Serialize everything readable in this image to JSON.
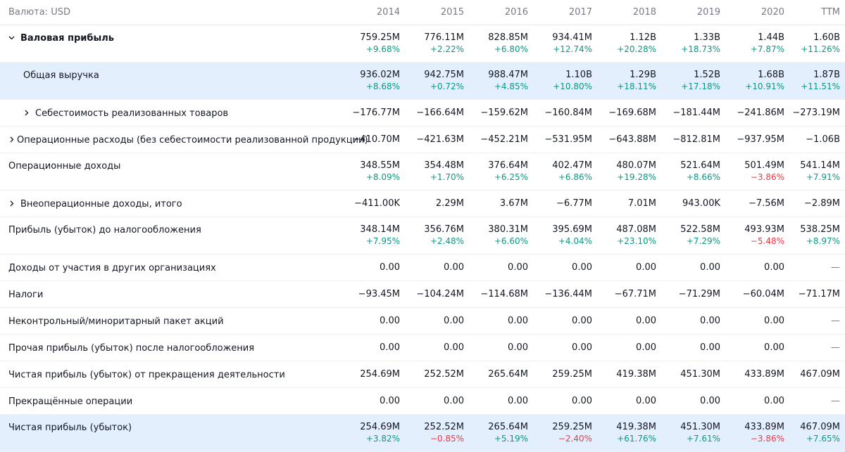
{
  "header": {
    "currency_label": "Валюта: USD",
    "years": [
      "2014",
      "2015",
      "2016",
      "2017",
      "2018",
      "2019",
      "2020",
      "TTM"
    ]
  },
  "rows": [
    {
      "label": "Валовая прибыль",
      "chevron": "expanded",
      "bold": true,
      "values": [
        "759.25M",
        "776.11M",
        "828.85M",
        "934.41M",
        "1.12B",
        "1.33B",
        "1.44B",
        "1.60B"
      ],
      "changes": [
        "+9.68%",
        "+2.22%",
        "+6.80%",
        "+12.74%",
        "+20.28%",
        "+18.73%",
        "+7.87%",
        "+11.26%"
      ]
    },
    {
      "label": "Общая выручка",
      "indent": true,
      "highlight": true,
      "values": [
        "936.02M",
        "942.75M",
        "988.47M",
        "1.10B",
        "1.29B",
        "1.52B",
        "1.68B",
        "1.87B"
      ],
      "changes": [
        "+8.68%",
        "+0.72%",
        "+4.85%",
        "+10.80%",
        "+18.11%",
        "+17.18%",
        "+10.91%",
        "+11.51%"
      ]
    },
    {
      "label": "Себестоимость реализованных товаров",
      "chevron": "collapsed",
      "indent": true,
      "values": [
        "−176.77M",
        "−166.64M",
        "−159.62M",
        "−160.84M",
        "−169.68M",
        "−181.44M",
        "−241.86M",
        "−273.19M"
      ]
    },
    {
      "label": "Операционные расходы (без себестоимости реализованной продукции)",
      "chevron": "collapsed",
      "values": [
        "−410.70M",
        "−421.63M",
        "−452.21M",
        "−531.95M",
        "−643.88M",
        "−812.81M",
        "−937.95M",
        "−1.06B"
      ]
    },
    {
      "label": "Операционные доходы",
      "values": [
        "348.55M",
        "354.48M",
        "376.64M",
        "402.47M",
        "480.07M",
        "521.64M",
        "501.49M",
        "541.14M"
      ],
      "changes": [
        "+8.09%",
        "+1.70%",
        "+6.25%",
        "+6.86%",
        "+19.28%",
        "+8.66%",
        "−3.86%",
        "+7.91%"
      ]
    },
    {
      "label": "Внеоперационные доходы, итого",
      "chevron": "collapsed",
      "values": [
        "−411.00K",
        "2.29M",
        "3.67M",
        "−6.77M",
        "7.01M",
        "943.00K",
        "−7.56M",
        "−2.89M"
      ]
    },
    {
      "label": "Прибыль (убыток) до налогообложения",
      "values": [
        "348.14M",
        "356.76M",
        "380.31M",
        "395.69M",
        "487.08M",
        "522.58M",
        "493.93M",
        "538.25M"
      ],
      "changes": [
        "+7.95%",
        "+2.48%",
        "+6.60%",
        "+4.04%",
        "+23.10%",
        "+7.29%",
        "−5.48%",
        "+8.97%"
      ]
    },
    {
      "label": "Доходы от участия в других организациях",
      "values": [
        "0.00",
        "0.00",
        "0.00",
        "0.00",
        "0.00",
        "0.00",
        "0.00",
        "—"
      ]
    },
    {
      "label": "Налоги",
      "values": [
        "−93.45M",
        "−104.24M",
        "−114.68M",
        "−136.44M",
        "−67.71M",
        "−71.29M",
        "−60.04M",
        "−71.17M"
      ]
    },
    {
      "label": "Неконтрольный/миноритарный пакет акций",
      "values": [
        "0.00",
        "0.00",
        "0.00",
        "0.00",
        "0.00",
        "0.00",
        "0.00",
        "—"
      ]
    },
    {
      "label": "Прочая прибыль (убыток) после налогообложения",
      "values": [
        "0.00",
        "0.00",
        "0.00",
        "0.00",
        "0.00",
        "0.00",
        "0.00",
        "—"
      ]
    },
    {
      "label": "Чистая прибыль (убыток) от прекращения деятельности",
      "values": [
        "254.69M",
        "252.52M",
        "265.64M",
        "259.25M",
        "419.38M",
        "451.30M",
        "433.89M",
        "467.09M"
      ]
    },
    {
      "label": "Прекращённые операции",
      "values": [
        "0.00",
        "0.00",
        "0.00",
        "0.00",
        "0.00",
        "0.00",
        "0.00",
        "—"
      ]
    },
    {
      "label": "Чистая прибыль (убыток)",
      "highlight": true,
      "values": [
        "254.69M",
        "252.52M",
        "265.64M",
        "259.25M",
        "419.38M",
        "451.30M",
        "433.89M",
        "467.09M"
      ],
      "changes": [
        "+3.82%",
        "−0.85%",
        "+5.19%",
        "−2.40%",
        "+61.76%",
        "+7.61%",
        "−3.86%",
        "+7.65%"
      ]
    }
  ],
  "colors": {
    "positive": "#089981",
    "negative": "#f23645",
    "highlight": "#e3effd"
  }
}
